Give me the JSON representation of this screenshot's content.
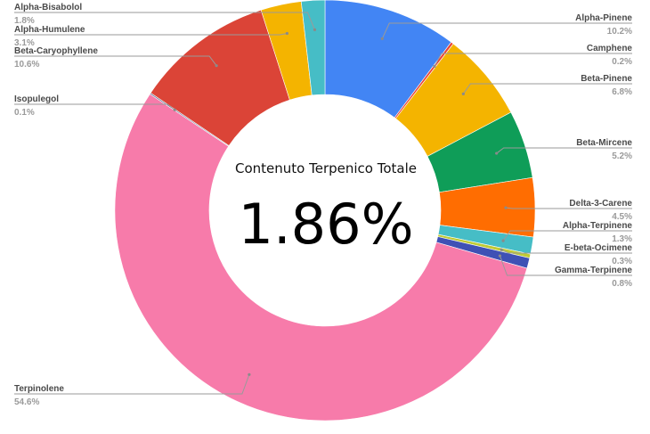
{
  "chart_data": {
    "type": "pie",
    "donut": true,
    "center_title": "Contenuto Terpenico Totale",
    "center_value": "1.86%",
    "slices": [
      {
        "name": "Alpha-Pinene",
        "value": 10.2,
        "label": "10.2%",
        "color": "#4285f4"
      },
      {
        "name": "Camphene",
        "value": 0.2,
        "label": "0.2%",
        "color": "#ea4335"
      },
      {
        "name": "Beta-Pinene",
        "value": 6.8,
        "label": "6.8%",
        "color": "#f4b400"
      },
      {
        "name": "Beta-Mircene",
        "value": 5.2,
        "label": "5.2%",
        "color": "#0f9d58"
      },
      {
        "name": "Delta-3-Carene",
        "value": 4.5,
        "label": "4.5%",
        "color": "#ff6d01"
      },
      {
        "name": "Alpha-Terpinene",
        "value": 1.3,
        "label": "1.3%",
        "color": "#46bdc6"
      },
      {
        "name": "E-beta-Ocimene",
        "value": 0.3,
        "label": "0.3%",
        "color": "#c0ca33"
      },
      {
        "name": "Gamma-Terpinene",
        "value": 0.8,
        "label": "0.8%",
        "color": "#3f51b5"
      },
      {
        "name": "Terpinolene",
        "value": 54.6,
        "label": "54.6%",
        "color": "#f77baa"
      },
      {
        "name": "Isopulegol",
        "value": 0.1,
        "label": "0.1%",
        "color": "#5b6b8f"
      },
      {
        "name": "Beta-Caryophyllene",
        "value": 10.6,
        "label": "10.6%",
        "color": "#db4437"
      },
      {
        "name": "Alpha-Humulene",
        "value": 3.1,
        "label": "3.1%",
        "color": "#f4b400"
      },
      {
        "name": "Alpha-Bisabolol",
        "value": 1.8,
        "label": "1.8%",
        "color": "#46bdc6"
      }
    ]
  }
}
